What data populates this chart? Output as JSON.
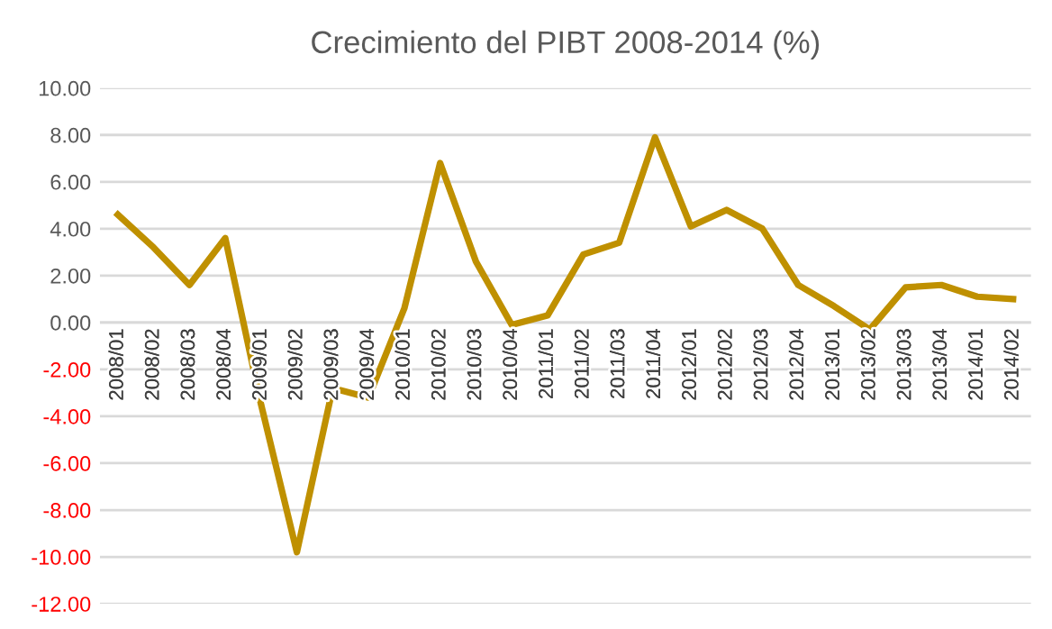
{
  "chart_data": {
    "type": "line",
    "title": "Crecimiento del PIBT 2008-2014 (%)",
    "categories": [
      "2008/01",
      "2008/02",
      "2008/03",
      "2008/04",
      "2009/01",
      "2009/02",
      "2009/03",
      "2009/04",
      "2010/01",
      "2010/02",
      "2010/03",
      "2010/04",
      "2011/01",
      "2011/02",
      "2011/03",
      "2011/04",
      "2012/01",
      "2012/02",
      "2012/03",
      "2012/04",
      "2013/01",
      "2013/02",
      "2013/03",
      "2013/04",
      "2014/01",
      "2014/02"
    ],
    "series": [
      {
        "color": "#bf9000",
        "values": [
          4.6,
          3.2,
          1.6,
          3.6,
          -3.5,
          -9.8,
          -2.8,
          -3.2,
          0.6,
          6.8,
          2.6,
          -0.1,
          0.3,
          2.9,
          3.4,
          7.9,
          4.1,
          4.8,
          4.0,
          1.6,
          0.7,
          -0.3,
          1.5,
          1.6,
          1.1,
          1.0
        ]
      }
    ],
    "ylim": [
      -12,
      10
    ],
    "yticks": [
      {
        "value": -12,
        "label": "-12.00"
      },
      {
        "value": -10,
        "label": "-10.00"
      },
      {
        "value": -8,
        "label": "-8.00"
      },
      {
        "value": -6,
        "label": "-6.00"
      },
      {
        "value": -4,
        "label": "-4.00"
      },
      {
        "value": -2,
        "label": "-2.00"
      },
      {
        "value": 0,
        "label": "0.00"
      },
      {
        "value": 2,
        "label": "2.00"
      },
      {
        "value": 4,
        "label": "4.00"
      },
      {
        "value": 6,
        "label": "6.00"
      },
      {
        "value": 8,
        "label": "8.00"
      },
      {
        "value": 10,
        "label": "10.00"
      }
    ],
    "grid": "y",
    "legend": false,
    "marker": "none",
    "line_style": "solid"
  }
}
